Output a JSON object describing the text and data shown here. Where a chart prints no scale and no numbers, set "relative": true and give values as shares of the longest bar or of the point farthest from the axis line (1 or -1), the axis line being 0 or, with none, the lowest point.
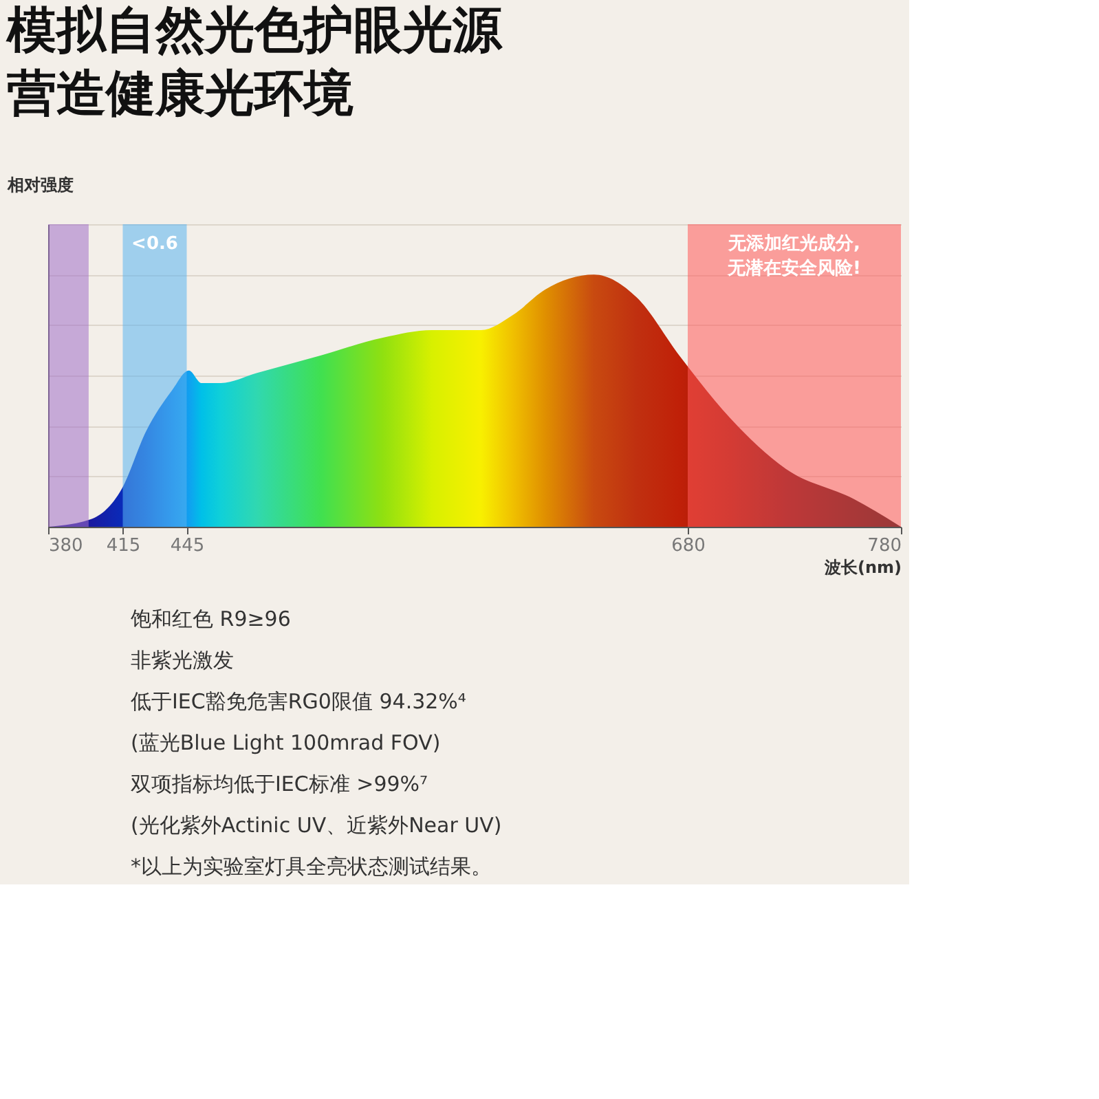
{
  "chart_data": {
    "type": "area",
    "title": "模拟自然光色护眼光源营造健康光环境",
    "xlabel": "波长(nm)",
    "ylabel": "相对强度",
    "relative": true,
    "grid": "y",
    "xlim": [
      380,
      780
    ],
    "xticks": [
      380,
      415,
      445,
      680,
      780
    ],
    "x": [
      380,
      400,
      414.5,
      426,
      438,
      446,
      452,
      461,
      478,
      508,
      537,
      560,
      583,
      598,
      613,
      636,
      656,
      676,
      700,
      726,
      758,
      780
    ],
    "series": [
      {
        "values": [
          0,
          0.03,
          0.15,
          0.38,
          0.54,
          0.62,
          0.57,
          0.57,
          0.61,
          0.68,
          0.75,
          0.78,
          0.78,
          0.84,
          0.94,
          1,
          0.91,
          0.68,
          0.43,
          0.23,
          0.11,
          0
        ],
        "colors": [
          "#2a1a8a",
          "#1a1aa0",
          "#0a2ab8",
          "#0a50d0",
          "#0a80e8",
          "#10a0f0",
          "#00c0e8",
          "#10d0d8",
          "#30d8b0",
          "#40e050",
          "#90e010",
          "#d8f000",
          "#f8f000",
          "#f0c000",
          "#e09000",
          "#c84a10",
          "#c03010",
          "#c02008",
          "#a01808",
          "#701010",
          "#401010",
          "#201010"
        ]
      }
    ],
    "bands": [
      {
        "axis": "x",
        "from": 680,
        "to": 780,
        "label": "无添加红光成分,无潜在安全风险!",
        "color": "#ff5a5a"
      },
      {
        "axis": "x",
        "from": 415,
        "to": 445,
        "label": "<0.6",
        "color": "#5ab4f0"
      },
      {
        "axis": "x",
        "from": 380,
        "to": 399,
        "color": "#a070c8"
      }
    ],
    "annotations": [
      "饱和红色 R9≥96",
      "非紫光激发",
      "低于IEC豁免危害RG0限值 94.32%⁴",
      "(蓝光Blue Light 100mrad FOV)",
      "双项指标均低于IEC标准 >99%⁷",
      "(光化紫外Actinic UV、近紫外Near UV)",
      "*以上为实验室灯具全亮状态测试结果。"
    ]
  }
}
